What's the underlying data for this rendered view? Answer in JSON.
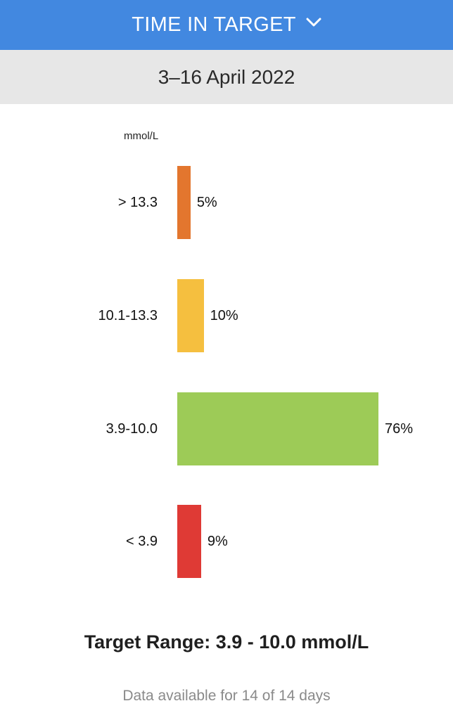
{
  "header": {
    "title": "TIME IN TARGET",
    "icon": "chevron-down-icon"
  },
  "date_range": "3–16 April 2022",
  "chart_data": {
    "type": "bar",
    "orientation": "horizontal",
    "unit_label": "mmol/L",
    "categories": [
      "> 13.3",
      "10.1-13.3",
      "3.9-10.0",
      "< 3.9"
    ],
    "values": [
      5,
      10,
      76,
      9
    ],
    "value_labels": [
      "5%",
      "10%",
      "76%",
      "9%"
    ],
    "colors": [
      "#e3762e",
      "#f5bf3f",
      "#9dcb57",
      "#df3a35"
    ]
  },
  "footer": {
    "target_range": "Target Range: 3.9 - 10.0 mmol/L",
    "availability": "Data available for 14 of 14 days"
  }
}
